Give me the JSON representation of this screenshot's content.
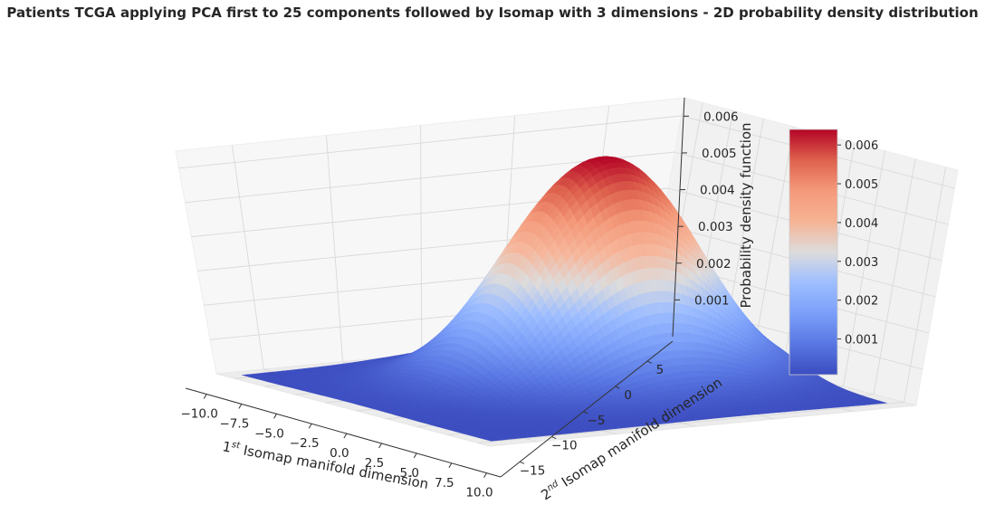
{
  "chart_data": {
    "type": "surface",
    "title": "Patients TCGA applying PCA first to 25 components followed by Isomap with 3 dimensions - 2D probability density distribution",
    "x_axis": {
      "label_main": "1",
      "label_sup": "st",
      "label_rest": " Isomap manifold dimension",
      "range": [
        -11.5,
        11.0
      ],
      "ticks": [
        -10.0,
        -7.5,
        -5.0,
        -2.5,
        0.0,
        2.5,
        5.0,
        7.5,
        10.0
      ],
      "tick_labels": [
        "−10.0",
        "−7.5",
        "−5.0",
        "−2.5",
        "0.0",
        "2.5",
        "5.0",
        "7.5",
        "10.0"
      ]
    },
    "y_axis": {
      "label_main": "2",
      "label_sup": "nd",
      "label_rest": " Isomap manifold dimension",
      "range": [
        -18.0,
        9.0
      ],
      "ticks": [
        -15,
        -10,
        -5,
        0,
        5
      ],
      "tick_labels": [
        "−15",
        "−10",
        "−5",
        "0",
        "5"
      ]
    },
    "z_axis": {
      "label": "Probability density function",
      "range": [
        0.0,
        0.0065
      ],
      "ticks": [
        0.001,
        0.002,
        0.003,
        0.004,
        0.005,
        0.006
      ],
      "tick_labels": [
        "0.001",
        "0.002",
        "0.003",
        "0.004",
        "0.005",
        "0.006"
      ]
    },
    "surface": {
      "distribution": "2D Gaussian kernel density",
      "peak": {
        "x": -1.0,
        "y": -2.0,
        "z": 0.0064
      },
      "sigma_x": 3.6,
      "sigma_y": 4.8,
      "baseline": 8e-05,
      "grid_resolution": 70
    },
    "colorbar": {
      "colormap": "coolwarm",
      "range": [
        8e-05,
        0.0064
      ],
      "ticks": [
        0.001,
        0.002,
        0.003,
        0.004,
        0.005,
        0.006
      ],
      "tick_labels": [
        "0.001",
        "0.002",
        "0.003",
        "0.004",
        "0.005",
        "0.006"
      ]
    },
    "grid": true
  }
}
